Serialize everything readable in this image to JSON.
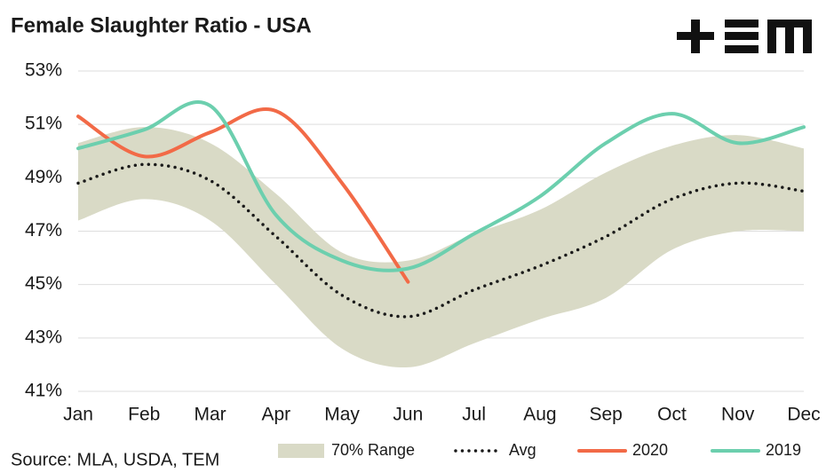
{
  "chart_data": {
    "type": "line",
    "title": "Female Slaughter Ratio - USA",
    "source": "Source: MLA, USDA, TEM",
    "categories": [
      "Jan",
      "Feb",
      "Mar",
      "Apr",
      "May",
      "Jun",
      "Jul",
      "Aug",
      "Sep",
      "Oct",
      "Nov",
      "Dec"
    ],
    "ylim": [
      41,
      53
    ],
    "yticks": [
      {
        "value": 41,
        "label": "41%"
      },
      {
        "value": 43,
        "label": "43%"
      },
      {
        "value": 45,
        "label": "45%"
      },
      {
        "value": 47,
        "label": "47%"
      },
      {
        "value": 49,
        "label": "49%"
      },
      {
        "value": 51,
        "label": "51%"
      },
      {
        "value": 53,
        "label": "53%"
      }
    ],
    "grid": true,
    "series": [
      {
        "name": "70% Range",
        "color": "#d9dac6",
        "style": "band",
        "upper": [
          50.3,
          50.9,
          50.3,
          48.4,
          46.2,
          45.9,
          46.9,
          47.8,
          49.2,
          50.2,
          50.6,
          50.1
        ],
        "lower": [
          47.4,
          48.2,
          47.4,
          45.0,
          42.6,
          41.9,
          42.8,
          43.7,
          44.5,
          46.3,
          47.0,
          47.0
        ]
      },
      {
        "name": "Avg",
        "color": "#1a1a1a",
        "style": "dotted",
        "values": [
          48.8,
          49.5,
          48.9,
          46.8,
          44.6,
          43.8,
          44.8,
          45.7,
          46.8,
          48.2,
          48.8,
          48.5
        ]
      },
      {
        "name": "2020",
        "color": "#f26a47",
        "style": "solid",
        "values": [
          51.3,
          49.8,
          50.7,
          51.5,
          48.8,
          45.1,
          null,
          null,
          null,
          null,
          null,
          null
        ]
      },
      {
        "name": "2019",
        "color": "#6ccfae",
        "style": "solid",
        "values": [
          50.1,
          50.8,
          51.7,
          47.6,
          45.9,
          45.6,
          46.9,
          48.3,
          50.3,
          51.4,
          50.3,
          50.9
        ]
      }
    ]
  }
}
